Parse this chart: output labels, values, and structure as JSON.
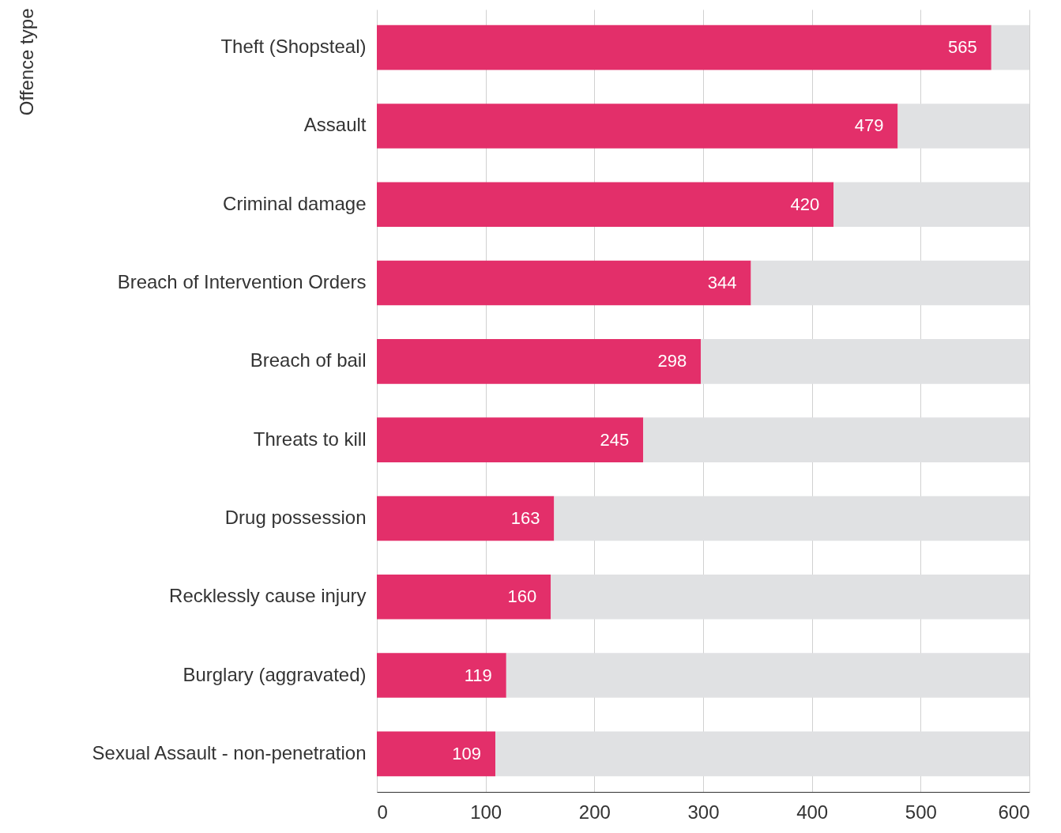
{
  "chart_data": {
    "type": "bar",
    "orientation": "horizontal",
    "stacked": true,
    "ylabel": "Offence type",
    "categories": [
      "Theft (Shopsteal)",
      "Assault",
      "Criminal damage",
      "Breach of Intervention Orders",
      "Breach of bail",
      "Threats to kill",
      "Drug possession",
      "Recklessly cause injury",
      "Burglary (aggravated)",
      "Sexual Assault - non-penetration"
    ],
    "series": [
      {
        "color": "#e32f6a",
        "values": [
          565,
          479,
          420,
          344,
          298,
          245,
          163,
          160,
          119,
          109
        ],
        "value_labels": [
          "565",
          "479",
          "420",
          "344",
          "298",
          "245",
          "163",
          "160",
          "119",
          "109"
        ]
      },
      {
        "color": "#e0e1e3",
        "values": [
          35,
          121,
          180,
          256,
          302,
          355,
          437,
          440,
          481,
          491
        ]
      }
    ],
    "xlim": [
      0,
      600
    ],
    "xticks": [
      0,
      100,
      200,
      300,
      400,
      500,
      600
    ],
    "grid": "x"
  }
}
